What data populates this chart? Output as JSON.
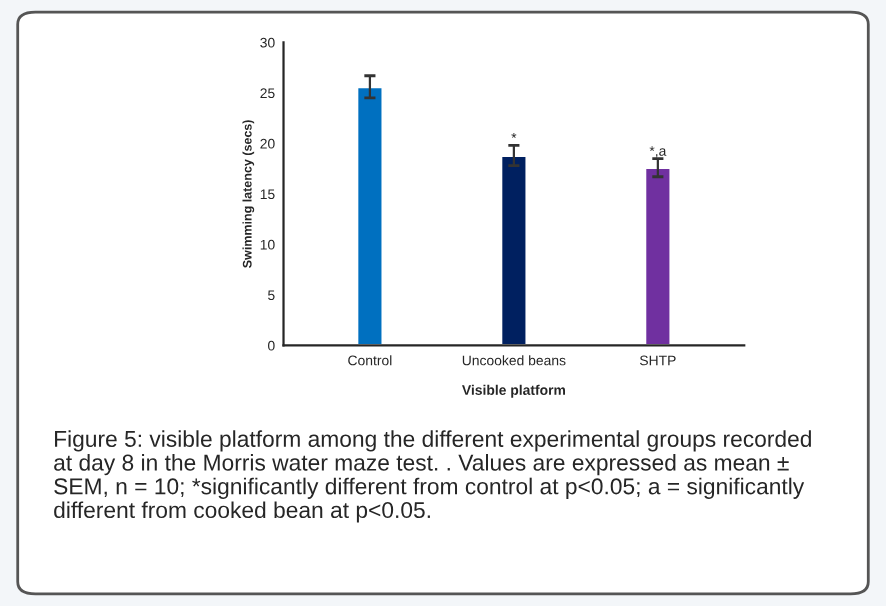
{
  "chart_data": {
    "type": "bar",
    "xlabel": "Visible platform",
    "ylabel": "Swimming latency (secs)",
    "categories": [
      "Control",
      "Uncooked beans",
      "SHTP"
    ],
    "values": [
      25.6,
      18.8,
      17.6
    ],
    "colors": [
      "#0070c0",
      "#002060",
      "#7030a0"
    ],
    "errors": [
      1.1,
      1.0,
      0.9
    ],
    "ylim": [
      0,
      30
    ],
    "yticks": [
      0,
      5,
      10,
      15,
      20,
      25,
      30
    ],
    "grid": false,
    "annotations": [
      {
        "text": "*",
        "x": "Uncooked beans",
        "y": 19.8
      },
      {
        "text": "*,a",
        "x": "SHTP",
        "y": 18.5
      },
      "Figure 5: visible platform among the different experimental groups recorded at day 8 in the Morris water maze test. . Values are expressed as mean ± SEM, n = 10; *significantly different from control at p<0.05; a = significantly different from cooked bean at p<0.05."
    ]
  }
}
